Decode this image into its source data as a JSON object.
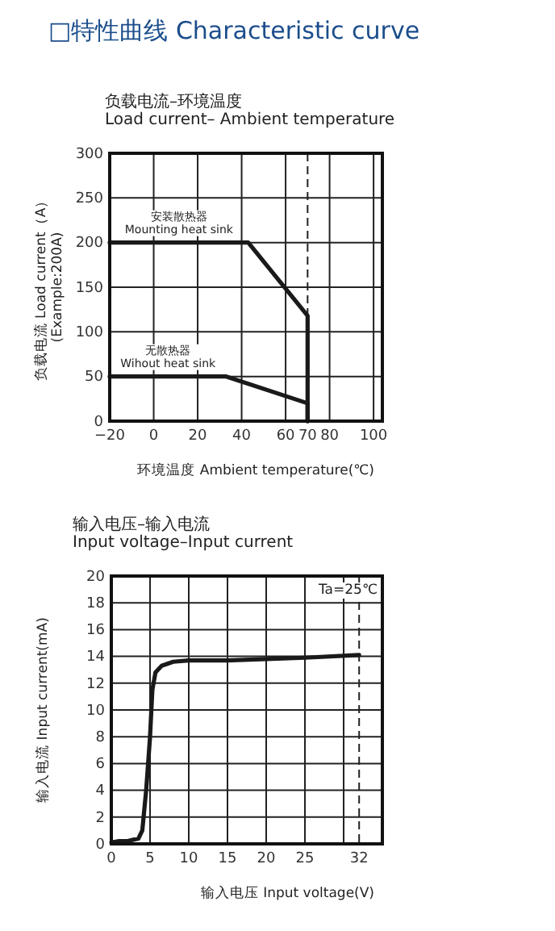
{
  "chart_data": [
    {
      "type": "line",
      "title": "□特性曲线 Characteristic curve",
      "subtitle": "负载电流–环境温度\nLoad current– Ambient temperature",
      "xlabel": "环境温度 Ambient temperature(℃)",
      "ylabel": "负载电流 Load current（A）\n(Example:200A)",
      "series": [
        {
          "name": "安装散热器\nMounting heat sink",
          "color": "#1a1a1a",
          "x": [
            -20,
            43,
            70,
            70
          ],
          "values": [
            200,
            200,
            118,
            0
          ]
        },
        {
          "name": "无散热器\nWihout heat sink",
          "color": "#1a1a1a",
          "x": [
            -20,
            33,
            70,
            70
          ],
          "values": [
            50,
            50,
            20,
            0
          ]
        }
      ],
      "xlim": [
        -20,
        104
      ],
      "xticks": [
        -20,
        0,
        20,
        40,
        60,
        70,
        80,
        100
      ],
      "ylim": [
        0,
        300
      ],
      "yticks": [
        0,
        50,
        100,
        150,
        200,
        250,
        300
      ],
      "ref_lines": [
        {
          "axis": "x",
          "value": 70,
          "line_style": "dashed"
        }
      ],
      "grid": true,
      "legend": false,
      "marker": "none",
      "line_style": "solid"
    },
    {
      "type": "line",
      "title": "输入电压–输入电流\nInput voltage–Input current",
      "xlabel": "输入电压 Input voltage(V)",
      "ylabel": "输入电流 Input current(mA)",
      "annotations": [
        "Ta=25℃"
      ],
      "series": [
        {
          "color": "#1a1a1a",
          "x": [
            0,
            1,
            2,
            3.5,
            4,
            4.5,
            5,
            5.3,
            5.7,
            6.5,
            8,
            10,
            15,
            20,
            25,
            32
          ],
          "values": [
            0.1,
            0.2,
            0.2,
            0.4,
            1,
            4,
            8,
            11.5,
            12.8,
            13.3,
            13.6,
            13.7,
            13.7,
            13.8,
            13.9,
            14.1
          ]
        }
      ],
      "xlim": [
        0,
        35
      ],
      "xticks": [
        0,
        5,
        10,
        15,
        20,
        25,
        {
          "value": 30,
          "label": null
        },
        32
      ],
      "ylim": [
        0,
        20
      ],
      "yticks": [
        0,
        2,
        4,
        6,
        8,
        10,
        12,
        14,
        16,
        18,
        20
      ],
      "ref_lines": [
        {
          "axis": "x",
          "value": 32,
          "line_style": "dashed"
        }
      ],
      "grid": true,
      "legend": false,
      "marker": "none",
      "line_style": "solid"
    }
  ]
}
